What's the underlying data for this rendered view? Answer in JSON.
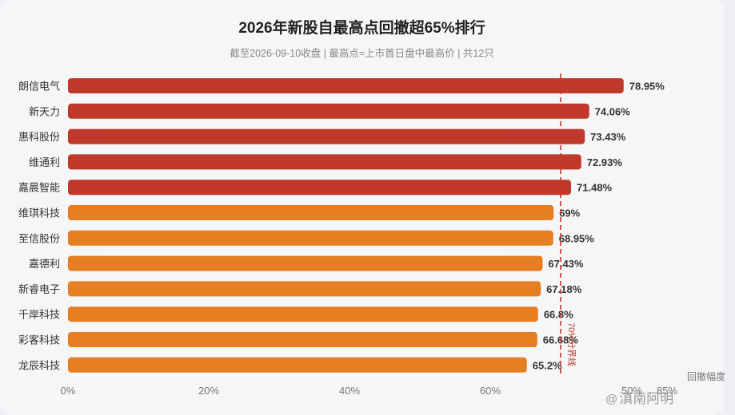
{
  "title": "2026年新股自最高点回撤超65%排行",
  "subtitle": "截至2026-09-10收盘 | 最高点=上市首日盘中最高价 | 共12只",
  "chart_data": {
    "type": "bar",
    "orientation": "horizontal",
    "categories": [
      "朗信电气",
      "新天力",
      "惠科股份",
      "维通利",
      "嘉晨智能",
      "维琪科技",
      "至信股份",
      "嘉德利",
      "新睿电子",
      "千岸科技",
      "彩客科技",
      "龙辰科技"
    ],
    "values": [
      78.95,
      74.06,
      73.43,
      72.93,
      71.48,
      69,
      68.95,
      67.43,
      67.18,
      66.8,
      66.68,
      65.2
    ],
    "value_labels": [
      "78.95%",
      "74.06%",
      "73.43%",
      "72.93%",
      "71.48%",
      "69%",
      "68.95%",
      "67.43%",
      "67.18%",
      "66.8%",
      "66.68%",
      "65.2%"
    ],
    "x_ticks": [
      0,
      20,
      40,
      60
    ],
    "x_tick_labels": [
      "0%",
      "20%",
      "40%",
      "60%"
    ],
    "x_ticks_extra_labels": [
      "50%",
      "85%"
    ],
    "xlabel": "回撤幅度",
    "xlim": [
      0,
      85
    ],
    "reference_line": {
      "value": 70,
      "label": "70%分界线",
      "color": "#c0392b"
    },
    "colors": {
      "above_70": "#c0392b",
      "below_70": "#e67e22"
    },
    "grid": false
  },
  "watermark": {
    "at": "@",
    "name": "滇南阿明"
  }
}
